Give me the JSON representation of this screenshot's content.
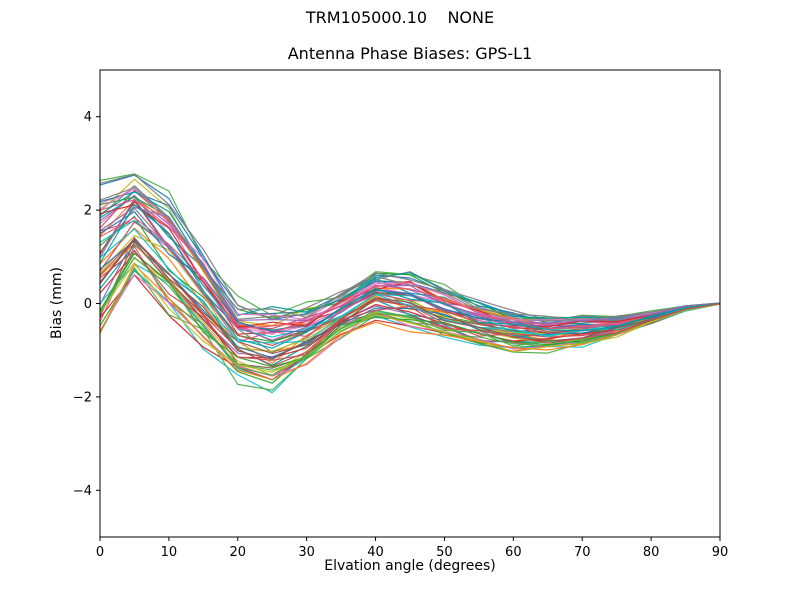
{
  "chart_data": {
    "type": "line",
    "suptitle": "TRM105000.10    NONE",
    "title": "Antenna Phase Biases: GPS-L1",
    "xlabel": "Elvation angle (degrees)",
    "ylabel": "Bias (mm)",
    "xlim": [
      0,
      90
    ],
    "ylim": [
      -5,
      5
    ],
    "xticks": [
      0,
      10,
      20,
      30,
      40,
      50,
      60,
      70,
      80,
      90
    ],
    "xtick_labels": [
      "0",
      "10",
      "20",
      "30",
      "40",
      "50",
      "60",
      "70",
      "80",
      "90"
    ],
    "yticks": [
      -4,
      -2,
      0,
      2,
      4
    ],
    "ytick_labels": [
      "−4",
      "−2",
      "0",
      "2",
      "4"
    ],
    "grid": false,
    "legend": "none",
    "x": [
      0,
      5,
      10,
      15,
      20,
      25,
      30,
      35,
      40,
      45,
      50,
      55,
      60,
      65,
      70,
      75,
      80,
      85,
      90
    ],
    "mean": [
      0.9,
      1.7,
      1.0,
      0.1,
      -0.8,
      -0.95,
      -0.7,
      -0.25,
      0.15,
      0.05,
      -0.2,
      -0.45,
      -0.6,
      -0.65,
      -0.6,
      -0.5,
      -0.3,
      -0.1,
      0.0
    ],
    "half_spread": [
      1.55,
      1.0,
      1.2,
      0.9,
      0.8,
      0.8,
      0.6,
      0.45,
      0.5,
      0.55,
      0.5,
      0.45,
      0.4,
      0.35,
      0.3,
      0.2,
      0.12,
      0.05,
      0.01
    ],
    "envelope_min": [
      -0.65,
      0.7,
      -0.2,
      -0.8,
      -1.6,
      -1.75,
      -1.3,
      -0.7,
      -0.35,
      -0.5,
      -0.7,
      -0.9,
      -1.0,
      -1.0,
      -0.9,
      -0.7,
      -0.42,
      -0.15,
      -0.01
    ],
    "envelope_max": [
      2.45,
      2.7,
      2.2,
      1.0,
      0.0,
      -0.15,
      -0.1,
      0.2,
      0.65,
      0.6,
      0.3,
      0.0,
      -0.2,
      -0.3,
      -0.3,
      -0.3,
      -0.18,
      -0.05,
      0.01
    ],
    "n_lines": 56,
    "line_offsets": [
      0.35,
      -0.8,
      0.9,
      -0.15,
      0.6,
      -1.0,
      0.1,
      0.75,
      -0.45,
      0.25,
      -0.6,
      1.0,
      -0.3,
      0.5,
      -0.9,
      0.0,
      0.85,
      -0.2,
      0.4,
      -0.7,
      0.95,
      -0.05,
      0.65,
      -0.55,
      0.2,
      -0.95,
      0.55,
      0.05,
      -0.4,
      0.8,
      -0.25,
      0.45,
      -0.85,
      0.15,
      0.7,
      -0.5,
      0.3,
      -0.1,
      0.62,
      -0.75,
      0.88,
      -0.35,
      0.52,
      -0.65,
      0.28,
      -0.98,
      0.72,
      -0.08,
      0.92,
      -0.88,
      0.58,
      -0.28,
      0.38,
      -0.62,
      0.18,
      -0.42
    ],
    "jitter_amplitude": 0.25,
    "palette": [
      "#d62728",
      "#2ca02c",
      "#1f77b4",
      "#ff7f0e",
      "#e377c2",
      "#17becf",
      "#7f7f7f",
      "#bcbd22",
      "#9467bd",
      "#8c564b",
      "#e75480",
      "#4daf4a",
      "#00a0a0",
      "#c44e52"
    ],
    "axis_color": "#000000",
    "background_color": "#ffffff"
  }
}
